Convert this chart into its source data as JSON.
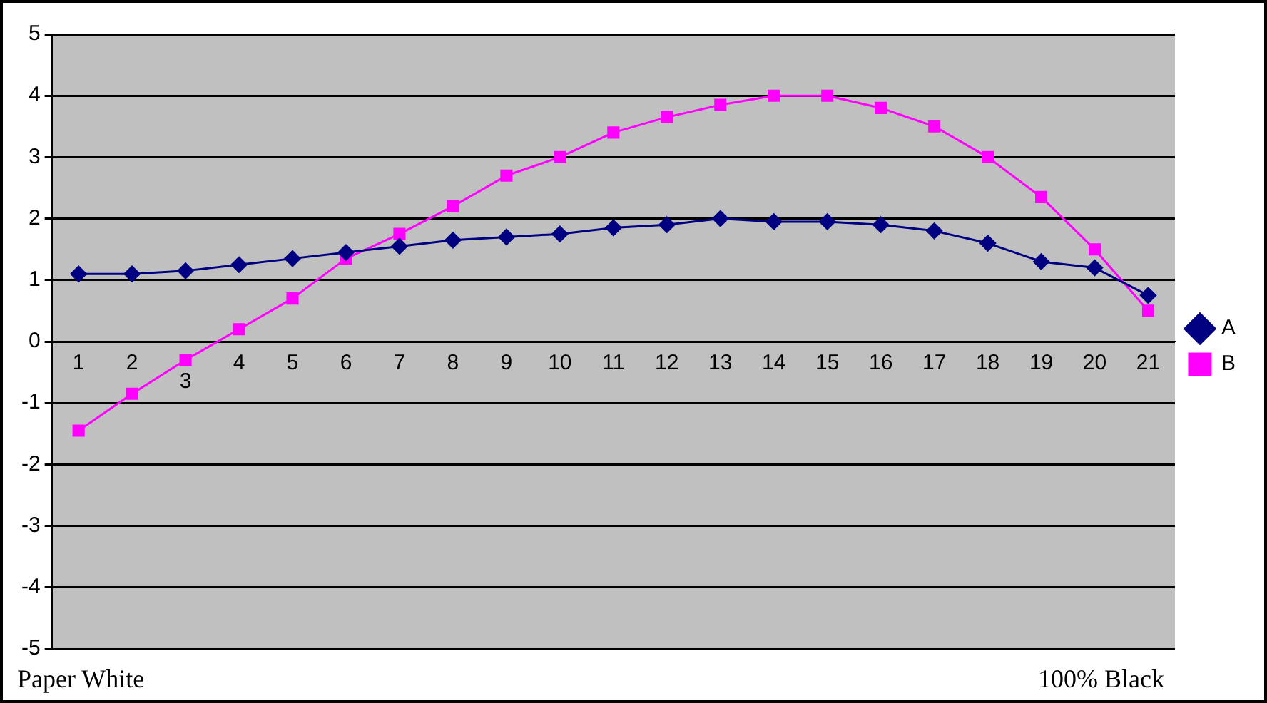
{
  "chart_data": {
    "type": "line",
    "categories": [
      "1",
      "2",
      "3",
      "4",
      "5",
      "6",
      "7",
      "8",
      "9",
      "10",
      "11",
      "12",
      "13",
      "14",
      "15",
      "16",
      "17",
      "18",
      "19",
      "20",
      "21"
    ],
    "series": [
      {
        "name": "A",
        "color": "#000080",
        "marker": "diamond",
        "values": [
          1.1,
          1.1,
          1.15,
          1.25,
          1.35,
          1.45,
          1.55,
          1.65,
          1.7,
          1.75,
          1.85,
          1.9,
          2.0,
          1.95,
          1.95,
          1.9,
          1.8,
          1.6,
          1.3,
          1.2,
          0.75
        ]
      },
      {
        "name": "B",
        "color": "#ff00ff",
        "marker": "square",
        "values": [
          -1.45,
          -0.85,
          -0.3,
          0.2,
          0.7,
          1.35,
          1.75,
          2.2,
          2.7,
          3.0,
          3.4,
          3.65,
          3.85,
          4.0,
          4.0,
          3.8,
          3.5,
          3.0,
          2.35,
          1.5,
          0.5
        ]
      }
    ],
    "ylim": [
      -5,
      5
    ],
    "yticks": [
      -5,
      -4,
      -3,
      -2,
      -1,
      0,
      1,
      2,
      3,
      4,
      5
    ],
    "grid": "y",
    "legend": "right",
    "line_style": "solid",
    "annotations": [
      "Paper White",
      "100% Black"
    ]
  }
}
